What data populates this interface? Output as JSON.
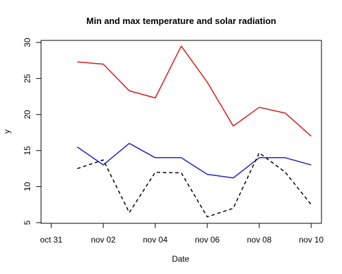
{
  "chart_data": {
    "type": "line",
    "title": "Min and max temperature and solar radiation",
    "xlabel": "Date",
    "ylabel": "y",
    "xlim": [
      "2017-10-30",
      "2017-11-10"
    ],
    "ylim": [
      5,
      30
    ],
    "x_ticks": [
      {
        "date": "2017-10-31",
        "label": "oct 31"
      },
      {
        "date": "2017-11-02",
        "label": "nov 02"
      },
      {
        "date": "2017-11-04",
        "label": "nov 04"
      },
      {
        "date": "2017-11-06",
        "label": "nov 06"
      },
      {
        "date": "2017-11-08",
        "label": "nov 08"
      },
      {
        "date": "2017-11-10",
        "label": "nov 10"
      }
    ],
    "y_ticks": [
      5,
      10,
      15,
      20,
      25,
      30
    ],
    "x": [
      "2017-11-01",
      "2017-11-02",
      "2017-11-03",
      "2017-11-04",
      "2017-11-05",
      "2017-11-06",
      "2017-11-07",
      "2017-11-08",
      "2017-11-09",
      "2017-11-10"
    ],
    "series": [
      {
        "color": "#d7191c",
        "dash": "solid",
        "values": [
          27.3,
          27.0,
          23.3,
          22.3,
          29.5,
          24.5,
          18.4,
          21.0,
          20.2,
          17.0
        ]
      },
      {
        "color": "#1f1fbf",
        "dash": "solid",
        "values": [
          15.5,
          13.0,
          16.0,
          14.0,
          14.0,
          11.7,
          11.2,
          14.0,
          14.0,
          13.0
        ]
      },
      {
        "color": "#000000",
        "dash": "dashed",
        "values": [
          12.5,
          13.7,
          6.4,
          12.0,
          11.9,
          5.8,
          7.0,
          14.7,
          12.0,
          7.5
        ]
      }
    ],
    "grid": false,
    "legend": "none"
  }
}
